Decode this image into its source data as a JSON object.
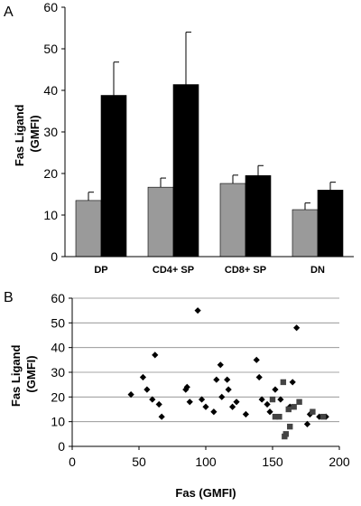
{
  "chart_data": [
    {
      "panel_label": "A",
      "type": "bar",
      "ylabel": "Fas Ligand (GMFI)",
      "ylabel_lines": [
        "Fas Ligand",
        "(GMFI)"
      ],
      "xlabel": "",
      "ylim": [
        0,
        60
      ],
      "yticks": [
        0,
        10,
        20,
        30,
        40,
        50,
        60
      ],
      "grid": false,
      "categories": [
        "DP",
        "CD4+ SP",
        "CD8+ SP",
        "DN"
      ],
      "series": [
        {
          "color": "#9a9a9a",
          "values": [
            13.5,
            16.7,
            17.6,
            11.3
          ],
          "errors": [
            2.0,
            2.2,
            2.0,
            1.6
          ]
        },
        {
          "color": "#000000",
          "values": [
            38.8,
            41.4,
            19.5,
            16.0
          ],
          "errors": [
            8.0,
            12.6,
            2.4,
            1.9
          ]
        }
      ]
    },
    {
      "panel_label": "B",
      "type": "scatter",
      "xlabel": "Fas (GMFI)",
      "ylabel": "Fas Ligand (GMFI)",
      "ylabel_lines": [
        "Fas Ligand",
        "(GMFI)"
      ],
      "xlim": [
        0,
        200
      ],
      "ylim": [
        0,
        60
      ],
      "xticks": [
        0,
        50,
        100,
        150,
        200
      ],
      "yticks": [
        0,
        10,
        20,
        30,
        40,
        50,
        60
      ],
      "grid": true,
      "series": [
        {
          "marker": "diamond",
          "color": "#000000",
          "points": [
            [
              44,
              21
            ],
            [
              53,
              28
            ],
            [
              56,
              23
            ],
            [
              60,
              19
            ],
            [
              62,
              37
            ],
            [
              65,
              17
            ],
            [
              67,
              12
            ],
            [
              85,
              23
            ],
            [
              86,
              24
            ],
            [
              88,
              18
            ],
            [
              94,
              55
            ],
            [
              97,
              19
            ],
            [
              100,
              16
            ],
            [
              106,
              14
            ],
            [
              108,
              27
            ],
            [
              111,
              33
            ],
            [
              112,
              20
            ],
            [
              116,
              27
            ],
            [
              117,
              23
            ],
            [
              120,
              16
            ],
            [
              123,
              18
            ],
            [
              130,
              13
            ],
            [
              138,
              35
            ],
            [
              140,
              28
            ],
            [
              142,
              19
            ],
            [
              146,
              17
            ],
            [
              148,
              14
            ],
            [
              152,
              23
            ],
            [
              156,
              19
            ],
            [
              163,
              16
            ],
            [
              168,
              48
            ],
            [
              165,
              26
            ],
            [
              176,
              9
            ],
            [
              178,
              13
            ],
            [
              185,
              12
            ],
            [
              190,
              12
            ]
          ]
        },
        {
          "marker": "square",
          "color": "#444444",
          "points": [
            [
              150,
              19
            ],
            [
              152,
              12
            ],
            [
              155,
              12
            ],
            [
              158,
              26
            ],
            [
              159,
              4
            ],
            [
              160,
              5
            ],
            [
              162,
              15
            ],
            [
              163,
              8
            ],
            [
              166,
              16
            ],
            [
              170,
              18
            ],
            [
              180,
              14
            ],
            [
              188,
              12
            ]
          ]
        }
      ]
    }
  ]
}
